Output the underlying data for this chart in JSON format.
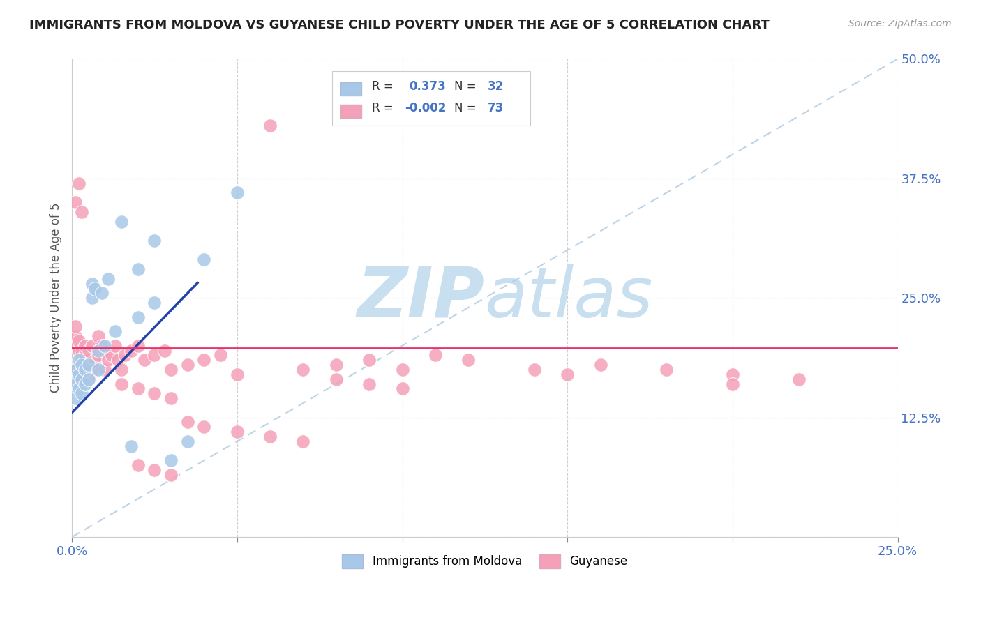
{
  "title": "IMMIGRANTS FROM MOLDOVA VS GUYANESE CHILD POVERTY UNDER THE AGE OF 5 CORRELATION CHART",
  "source": "Source: ZipAtlas.com",
  "ylabel": "Child Poverty Under the Age of 5",
  "r_moldova": 0.373,
  "n_moldova": 32,
  "r_guyanese": -0.002,
  "n_guyanese": 73,
  "xlim": [
    0,
    0.25
  ],
  "ylim": [
    0,
    0.5
  ],
  "color_moldova": "#a8c8e8",
  "color_guyanese": "#f4a0b8",
  "trend_moldova": "#2244aa",
  "trend_guyanese": "#e8336e",
  "watermark_zip": "ZIP",
  "watermark_atlas": "atlas",
  "watermark_color_zip": "#c8dff0",
  "watermark_color_atlas": "#c8dff0",
  "moldova_x": [
    0.001,
    0.001,
    0.001,
    0.002,
    0.002,
    0.002,
    0.003,
    0.003,
    0.003,
    0.004,
    0.004,
    0.005,
    0.005,
    0.006,
    0.006,
    0.007,
    0.008,
    0.008,
    0.009,
    0.01,
    0.011,
    0.013,
    0.015,
    0.018,
    0.02,
    0.025,
    0.03,
    0.035,
    0.04,
    0.05,
    0.02,
    0.025
  ],
  "moldova_y": [
    0.145,
    0.16,
    0.175,
    0.155,
    0.17,
    0.185,
    0.15,
    0.165,
    0.18,
    0.16,
    0.175,
    0.165,
    0.18,
    0.25,
    0.265,
    0.26,
    0.175,
    0.195,
    0.255,
    0.2,
    0.27,
    0.215,
    0.33,
    0.095,
    0.28,
    0.31,
    0.08,
    0.1,
    0.29,
    0.36,
    0.23,
    0.245
  ],
  "guyanese_x": [
    0.001,
    0.001,
    0.001,
    0.001,
    0.001,
    0.002,
    0.002,
    0.002,
    0.002,
    0.003,
    0.003,
    0.003,
    0.003,
    0.004,
    0.004,
    0.004,
    0.005,
    0.005,
    0.005,
    0.006,
    0.006,
    0.007,
    0.007,
    0.008,
    0.008,
    0.009,
    0.01,
    0.01,
    0.011,
    0.012,
    0.013,
    0.014,
    0.015,
    0.016,
    0.018,
    0.02,
    0.022,
    0.025,
    0.028,
    0.03,
    0.035,
    0.04,
    0.045,
    0.05,
    0.06,
    0.07,
    0.08,
    0.09,
    0.1,
    0.11,
    0.12,
    0.14,
    0.16,
    0.18,
    0.2,
    0.22,
    0.015,
    0.02,
    0.025,
    0.03,
    0.035,
    0.04,
    0.05,
    0.06,
    0.07,
    0.08,
    0.09,
    0.1,
    0.15,
    0.2,
    0.02,
    0.025,
    0.03
  ],
  "guyanese_y": [
    0.2,
    0.21,
    0.22,
    0.175,
    0.35,
    0.195,
    0.205,
    0.165,
    0.37,
    0.185,
    0.195,
    0.175,
    0.34,
    0.18,
    0.19,
    0.2,
    0.185,
    0.195,
    0.165,
    0.18,
    0.2,
    0.185,
    0.175,
    0.21,
    0.19,
    0.2,
    0.195,
    0.175,
    0.185,
    0.19,
    0.2,
    0.185,
    0.175,
    0.19,
    0.195,
    0.2,
    0.185,
    0.19,
    0.195,
    0.175,
    0.18,
    0.185,
    0.19,
    0.17,
    0.43,
    0.175,
    0.18,
    0.185,
    0.175,
    0.19,
    0.185,
    0.175,
    0.18,
    0.175,
    0.17,
    0.165,
    0.16,
    0.155,
    0.15,
    0.145,
    0.12,
    0.115,
    0.11,
    0.105,
    0.1,
    0.165,
    0.16,
    0.155,
    0.17,
    0.16,
    0.075,
    0.07,
    0.065
  ]
}
